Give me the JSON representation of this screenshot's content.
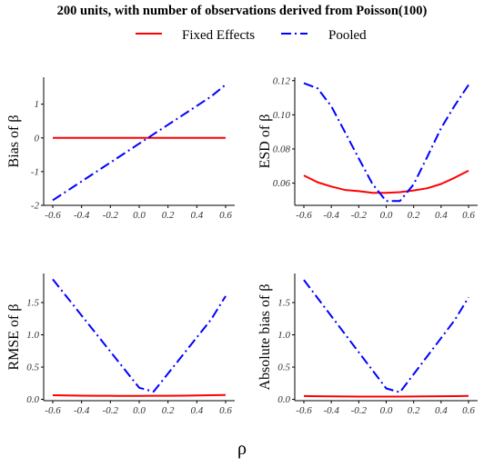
{
  "title": "200 units, with number of observations derived from Poisson(100)",
  "xlabel": "ρ",
  "legend": {
    "placement": "top",
    "items": [
      {
        "label": "Fixed Effects",
        "color": "#ff0000",
        "dash": "solid"
      },
      {
        "label": "Pooled",
        "color": "#0000ff",
        "dash": "dashdot"
      }
    ]
  },
  "chart_data": [
    {
      "type": "line",
      "ylabel": "Bias of β",
      "x": [
        -0.6,
        -0.5,
        -0.4,
        -0.3,
        -0.2,
        -0.1,
        0.0,
        0.1,
        0.2,
        0.3,
        0.4,
        0.5,
        0.6
      ],
      "xticks": [
        -0.6,
        -0.4,
        -0.2,
        0.0,
        0.2,
        0.4,
        0.6
      ],
      "xtick_labels": [
        "-0.6",
        "-0.4",
        "-0.2",
        "0.0",
        "0.2",
        "0.4",
        "0.6"
      ],
      "xlim": [
        -0.6,
        0.6
      ],
      "ylim": [
        -2.0,
        1.8
      ],
      "yticks": [
        -2,
        -1,
        0,
        1
      ],
      "ytick_labels": [
        "-2",
        "-1",
        "0",
        "1"
      ],
      "series": [
        {
          "name": "Fixed Effects",
          "values": [
            0.0,
            0.0,
            0.0,
            0.0,
            0.0,
            0.0,
            0.0,
            0.0,
            0.0,
            0.0,
            0.0,
            0.0,
            0.0
          ]
        },
        {
          "name": "Pooled",
          "values": [
            -1.85,
            -1.57,
            -1.29,
            -1.01,
            -0.73,
            -0.45,
            -0.17,
            0.11,
            0.39,
            0.67,
            0.95,
            1.23,
            1.58
          ]
        }
      ]
    },
    {
      "type": "line",
      "ylabel": "ESD of β",
      "x": [
        -0.6,
        -0.5,
        -0.4,
        -0.3,
        -0.2,
        -0.1,
        0.0,
        0.1,
        0.2,
        0.3,
        0.4,
        0.5,
        0.6
      ],
      "xticks": [
        -0.6,
        -0.4,
        -0.2,
        0.0,
        0.2,
        0.4,
        0.6
      ],
      "xtick_labels": [
        "-0.6",
        "-0.4",
        "-0.2",
        "0.0",
        "0.2",
        "0.4",
        "0.6"
      ],
      "xlim": [
        -0.6,
        0.6
      ],
      "ylim": [
        0.047,
        0.122
      ],
      "yticks": [
        0.06,
        0.08,
        0.1,
        0.12
      ],
      "ytick_labels": [
        "0.06",
        "0.08",
        "0.10",
        "0.12"
      ],
      "series": [
        {
          "name": "Fixed Effects",
          "values": [
            0.0645,
            0.0605,
            0.058,
            0.056,
            0.0553,
            0.0543,
            0.0543,
            0.0547,
            0.0557,
            0.057,
            0.0595,
            0.0632,
            0.0673
          ]
        },
        {
          "name": "Pooled",
          "values": [
            0.1185,
            0.1155,
            0.105,
            0.0898,
            0.0745,
            0.0595,
            0.0495,
            0.0495,
            0.0593,
            0.0755,
            0.0922,
            0.1055,
            0.1175
          ]
        }
      ]
    },
    {
      "type": "line",
      "ylabel": "RMSE of β",
      "x": [
        -0.6,
        -0.5,
        -0.4,
        -0.3,
        -0.2,
        -0.1,
        0.0,
        0.1,
        0.2,
        0.3,
        0.4,
        0.5,
        0.6
      ],
      "xticks": [
        -0.6,
        -0.4,
        -0.2,
        0.0,
        0.2,
        0.4,
        0.6
      ],
      "xtick_labels": [
        "-0.6",
        "-0.4",
        "-0.2",
        "0.0",
        "0.2",
        "0.4",
        "0.6"
      ],
      "xlim": [
        -0.6,
        0.6
      ],
      "ylim": [
        -0.02,
        1.95
      ],
      "yticks": [
        0.0,
        0.5,
        1.0,
        1.5
      ],
      "ytick_labels": [
        "0.0",
        "0.5",
        "1.0",
        "1.5"
      ],
      "series": [
        {
          "name": "Fixed Effects",
          "values": [
            0.065,
            0.06,
            0.058,
            0.056,
            0.055,
            0.054,
            0.054,
            0.055,
            0.056,
            0.057,
            0.06,
            0.064,
            0.068
          ]
        },
        {
          "name": "Pooled",
          "values": [
            1.86,
            1.58,
            1.3,
            1.02,
            0.74,
            0.46,
            0.18,
            0.12,
            0.4,
            0.68,
            0.96,
            1.24,
            1.6
          ]
        }
      ]
    },
    {
      "type": "line",
      "ylabel": "Absolute bias of β",
      "x": [
        -0.6,
        -0.5,
        -0.4,
        -0.3,
        -0.2,
        -0.1,
        0.0,
        0.1,
        0.2,
        0.3,
        0.4,
        0.5,
        0.6
      ],
      "xticks": [
        -0.6,
        -0.4,
        -0.2,
        0.0,
        0.2,
        0.4,
        0.6
      ],
      "xtick_labels": [
        "-0.6",
        "-0.4",
        "-0.2",
        "0.0",
        "0.2",
        "0.4",
        "0.6"
      ],
      "xlim": [
        -0.6,
        0.6
      ],
      "ylim": [
        -0.02,
        1.95
      ],
      "yticks": [
        0.0,
        0.5,
        1.0,
        1.5
      ],
      "ytick_labels": [
        "0.0",
        "0.5",
        "1.0",
        "1.5"
      ],
      "series": [
        {
          "name": "Fixed Effects",
          "values": [
            0.052,
            0.048,
            0.046,
            0.045,
            0.044,
            0.044,
            0.044,
            0.044,
            0.045,
            0.046,
            0.048,
            0.05,
            0.053
          ]
        },
        {
          "name": "Pooled",
          "values": [
            1.85,
            1.57,
            1.29,
            1.01,
            0.73,
            0.45,
            0.17,
            0.11,
            0.39,
            0.67,
            0.95,
            1.23,
            1.58
          ]
        }
      ]
    }
  ]
}
